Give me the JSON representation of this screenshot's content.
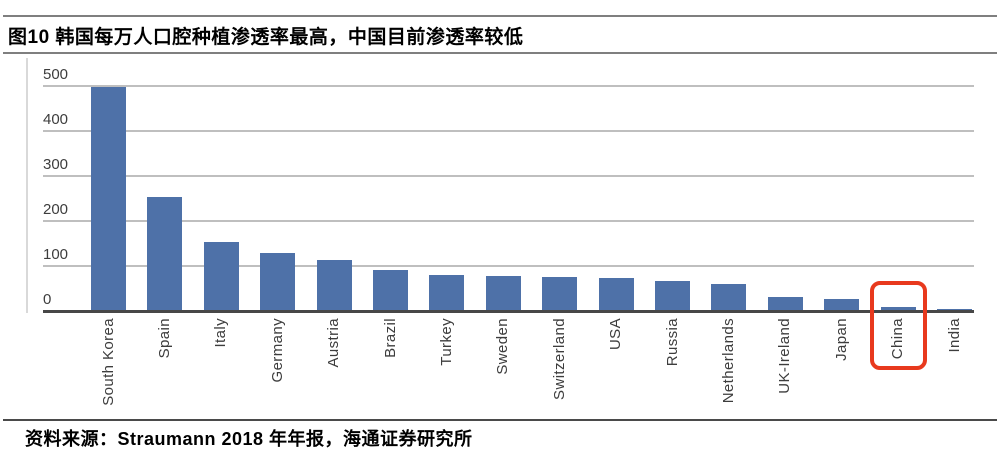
{
  "figure": {
    "title": "图10 韩国每万人口腔种植渗透率最高，中国目前渗透率较低",
    "source": "资料来源：Straumann 2018 年年报，海通证券研究所"
  },
  "chart_data": {
    "type": "bar",
    "title": "图10 韩国每万人口腔种植渗透率最高，中国目前渗透率较低",
    "categories": [
      "South Korea",
      "Spain",
      "Italy",
      "Germany",
      "Austria",
      "Brazil",
      "Turkey",
      "Sweden",
      "Switzerland",
      "USA",
      "Russia",
      "Netherlands",
      "UK-Ireland",
      "Japan",
      "China",
      "India"
    ],
    "values": [
      495,
      250,
      150,
      127,
      110,
      89,
      78,
      76,
      73,
      72,
      64,
      58,
      29,
      25,
      6,
      2
    ],
    "xlabel": "",
    "ylabel": "",
    "ylim": [
      0,
      500
    ],
    "yticks": [
      0,
      100,
      200,
      300,
      400,
      500
    ],
    "grid": true,
    "legend_position": "none",
    "bar_color": "#4e71a8",
    "gridline_color": "#bfbfbf",
    "axis_color": "#474747",
    "tick_label_color": "#3d3d3d",
    "highlight": {
      "category": "China",
      "box_color": "#e8391d"
    }
  }
}
